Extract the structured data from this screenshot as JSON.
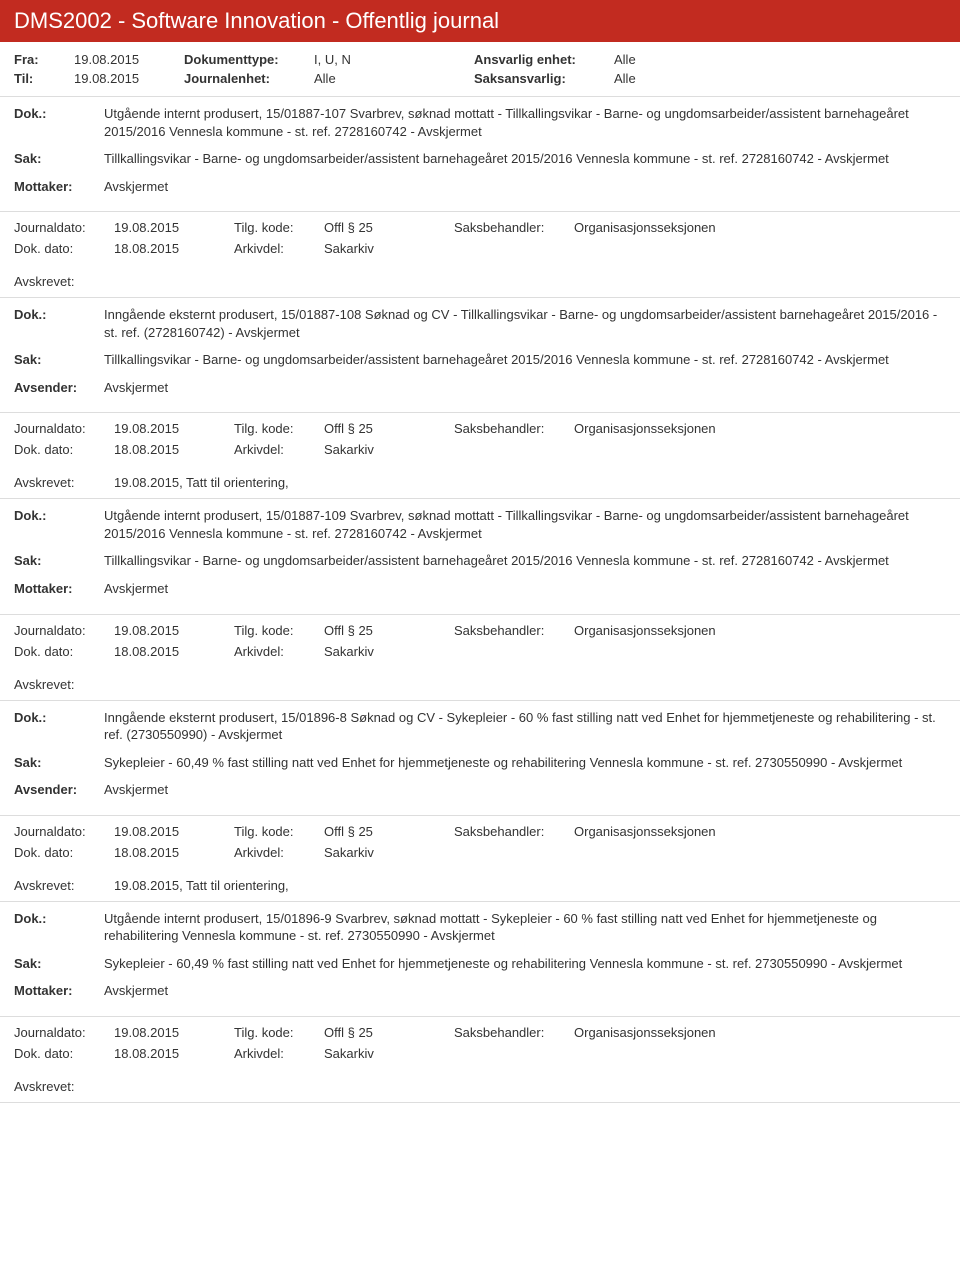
{
  "colors": {
    "header_bg": "#c22b20",
    "header_text": "#ffffff",
    "body_bg": "#ffffff",
    "text": "#333333",
    "border": "#dddddd"
  },
  "typography": {
    "title_fontsize": 22,
    "body_fontsize": 13,
    "font_family": "Segoe UI"
  },
  "header": {
    "title": "DMS2002 - Software Innovation - Offentlig journal"
  },
  "filters": {
    "fra_label": "Fra:",
    "fra_value": "19.08.2015",
    "til_label": "Til:",
    "til_value": "19.08.2015",
    "doktype_label": "Dokumenttype:",
    "doktype_value": "I, U, N",
    "journalenhet_label": "Journalenhet:",
    "journalenhet_value": "Alle",
    "ansvarlig_label": "Ansvarlig enhet:",
    "ansvarlig_value": "Alle",
    "saksansvarlig_label": "Saksansvarlig:",
    "saksansvarlig_value": "Alle"
  },
  "labels": {
    "dok": "Dok.:",
    "sak": "Sak:",
    "mottaker": "Mottaker:",
    "avsender": "Avsender:",
    "journaldato": "Journaldato:",
    "dokdato": "Dok. dato:",
    "tilgkode": "Tilg. kode:",
    "arkivdel": "Arkivdel:",
    "saksbehandler": "Saksbehandler:",
    "avskrevet": "Avskrevet:"
  },
  "entries": [
    {
      "dok": "Utgående internt produsert, 15/01887-107 Svarbrev, søknad mottatt - Tillkallingsvikar - Barne- og ungdomsarbeider/assistent barnehageåret 2015/2016 Vennesla kommune - st. ref. 2728160742 - Avskjermet",
      "sak": "Tillkallingsvikar - Barne- og ungdomsarbeider/assistent barnehageåret 2015/2016 Vennesla kommune - st. ref. 2728160742 - Avskjermet",
      "party_label": "Mottaker:",
      "party_value": "Avskjermet",
      "journaldato": "19.08.2015",
      "dokdato": "18.08.2015",
      "tilgkode": "Offl § 25",
      "arkivdel": "Sakarkiv",
      "saksbehandler": "Organisasjonsseksjonen",
      "avskrevet": ""
    },
    {
      "dok": "Inngående eksternt produsert, 15/01887-108 Søknad og CV - Tillkallingsvikar - Barne- og ungdomsarbeider/assistent barnehageåret 2015/2016 - st. ref. (2728160742) - Avskjermet",
      "sak": "Tillkallingsvikar - Barne- og ungdomsarbeider/assistent barnehageåret 2015/2016 Vennesla kommune - st. ref. 2728160742 - Avskjermet",
      "party_label": "Avsender:",
      "party_value": "Avskjermet",
      "journaldato": "19.08.2015",
      "dokdato": "18.08.2015",
      "tilgkode": "Offl § 25",
      "arkivdel": "Sakarkiv",
      "saksbehandler": "Organisasjonsseksjonen",
      "avskrevet": "19.08.2015, Tatt til orientering,"
    },
    {
      "dok": "Utgående internt produsert, 15/01887-109 Svarbrev, søknad mottatt - Tillkallingsvikar - Barne- og ungdomsarbeider/assistent barnehageåret 2015/2016 Vennesla kommune - st. ref. 2728160742 - Avskjermet",
      "sak": "Tillkallingsvikar - Barne- og ungdomsarbeider/assistent barnehageåret 2015/2016 Vennesla kommune - st. ref. 2728160742 - Avskjermet",
      "party_label": "Mottaker:",
      "party_value": "Avskjermet",
      "journaldato": "19.08.2015",
      "dokdato": "18.08.2015",
      "tilgkode": "Offl § 25",
      "arkivdel": "Sakarkiv",
      "saksbehandler": "Organisasjonsseksjonen",
      "avskrevet": ""
    },
    {
      "dok": "Inngående eksternt produsert, 15/01896-8 Søknad og CV - Sykepleier - 60 % fast stilling natt ved Enhet for hjemmetjeneste og rehabilitering - st. ref. (2730550990) - Avskjermet",
      "sak": "Sykepleier - 60,49 % fast stilling natt ved Enhet for hjemmetjeneste og rehabilitering Vennesla kommune - st. ref. 2730550990 - Avskjermet",
      "party_label": "Avsender:",
      "party_value": "Avskjermet",
      "journaldato": "19.08.2015",
      "dokdato": "18.08.2015",
      "tilgkode": "Offl § 25",
      "arkivdel": "Sakarkiv",
      "saksbehandler": "Organisasjonsseksjonen",
      "avskrevet": "19.08.2015, Tatt til orientering,"
    },
    {
      "dok": "Utgående internt produsert, 15/01896-9 Svarbrev, søknad mottatt - Sykepleier - 60 % fast stilling natt ved Enhet for hjemmetjeneste og rehabilitering Vennesla kommune - st. ref. 2730550990 - Avskjermet",
      "sak": "Sykepleier - 60,49 % fast stilling natt ved Enhet for hjemmetjeneste og rehabilitering Vennesla kommune - st. ref. 2730550990 - Avskjermet",
      "party_label": "Mottaker:",
      "party_value": "Avskjermet",
      "journaldato": "19.08.2015",
      "dokdato": "18.08.2015",
      "tilgkode": "Offl § 25",
      "arkivdel": "Sakarkiv",
      "saksbehandler": "Organisasjonsseksjonen",
      "avskrevet": ""
    }
  ]
}
